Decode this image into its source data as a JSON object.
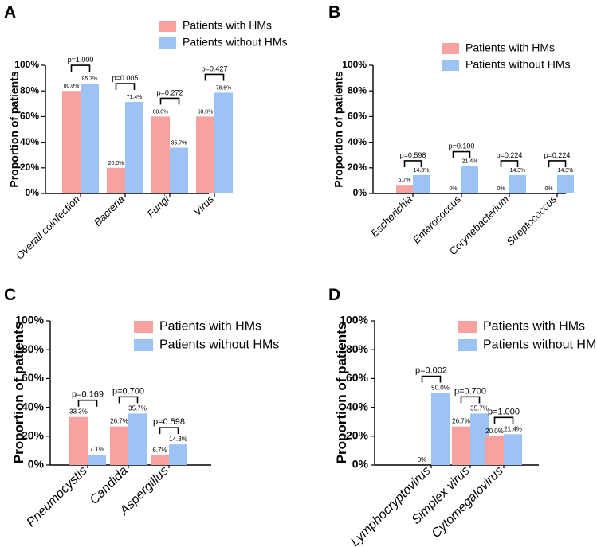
{
  "colors": {
    "with": "#f7a1a1",
    "without": "#9dc3f5"
  },
  "chart_data": [
    {
      "panel": "A",
      "type": "bar",
      "ylabel": "Proportion of patients",
      "ylim": [
        0,
        100
      ],
      "yticks": [
        "0%",
        "20%",
        "40%",
        "60%",
        "80%",
        "100%"
      ],
      "categories": [
        "Overall coinfection",
        "Bacteria",
        "Fungi",
        "Virus"
      ],
      "series": [
        {
          "name": "Patients with HMs",
          "values": [
            80.0,
            20.0,
            60.0,
            60.0
          ],
          "labels": [
            "80.0%",
            "20.0%",
            "60.0%",
            "60.0%"
          ]
        },
        {
          "name": "Patients without HMs",
          "values": [
            85.7,
            71.4,
            35.7,
            78.6
          ],
          "labels": [
            "85.7%",
            "71.4%",
            "35.7%",
            "78.6%"
          ]
        }
      ],
      "pvalues": [
        "p=1.000",
        "p=0.005",
        "p=0.272",
        "p=0.427"
      ]
    },
    {
      "panel": "B",
      "type": "bar",
      "ylabel": "Proportion of patients",
      "ylim": [
        0,
        100
      ],
      "yticks": [
        "0%",
        "20%",
        "40%",
        "60%",
        "80%",
        "100%"
      ],
      "categories": [
        "Escherichia",
        "Enterococcus",
        "Corynebacterium",
        "Streptococcus"
      ],
      "series": [
        {
          "name": "Patients with HMs",
          "values": [
            6.7,
            0,
            0,
            0
          ],
          "labels": [
            "6.7%",
            "0%",
            "0%",
            "0%"
          ]
        },
        {
          "name": "Patients without HMs",
          "values": [
            14.3,
            21.4,
            14.3,
            14.3
          ],
          "labels": [
            "14.3%",
            "21.4%",
            "14.3%",
            "14.3%"
          ]
        }
      ],
      "pvalues": [
        "p=0.598",
        "p=0.100",
        "p=0.224",
        "p=0.224"
      ]
    },
    {
      "panel": "C",
      "type": "bar",
      "ylabel": "Proportion of patients",
      "ylim": [
        0,
        100
      ],
      "yticks": [
        "0%",
        "20%",
        "40%",
        "60%",
        "80%",
        "100%"
      ],
      "categories": [
        "Pneumocystis",
        "Candida",
        "Aspergillus"
      ],
      "series": [
        {
          "name": "Patients with HMs",
          "values": [
            33.3,
            26.7,
            6.7
          ],
          "labels": [
            "33.3%",
            "26.7%",
            "6.7%"
          ]
        },
        {
          "name": "Patients without HMs",
          "values": [
            7.1,
            35.7,
            14.3
          ],
          "labels": [
            "7.1%",
            "35.7%",
            "14.3%"
          ]
        }
      ],
      "pvalues": [
        "p=0.169",
        "p=0.700",
        "p=0.598"
      ]
    },
    {
      "panel": "D",
      "type": "bar",
      "ylabel": "Proportion of patients",
      "ylim": [
        0,
        100
      ],
      "yticks": [
        "0%",
        "20%",
        "40%",
        "60%",
        "80%",
        "100%"
      ],
      "categories": [
        "Lymphocryptovirus",
        "Simplex virus",
        "Cytomegalovirus"
      ],
      "series": [
        {
          "name": "Patients with HMs",
          "values": [
            0,
            26.7,
            20.0
          ],
          "labels": [
            "0%",
            "26.7%",
            "20.0%"
          ]
        },
        {
          "name": "Patients without HMs",
          "values": [
            50.0,
            35.7,
            21.4
          ],
          "labels": [
            "50.0%",
            "35.7%",
            "21.4%"
          ]
        }
      ],
      "pvalues": [
        "p=0.002",
        "p=0.700",
        "p=1.000"
      ]
    }
  ]
}
